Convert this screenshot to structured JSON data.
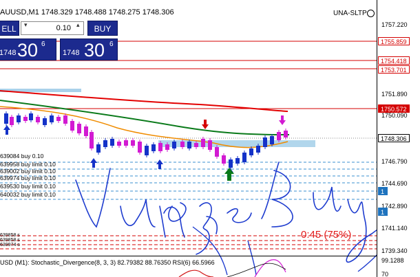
{
  "chart_header": {
    "title": "AUUSD,M1  1748.329  1748.488  1748.275  1748.306"
  },
  "ea_label": {
    "text": "UNA-SLTP"
  },
  "trade_panel": {
    "sell_label": "ELL",
    "buy_label": "BUY",
    "lot_value": "0.10",
    "sell_price_small": "1748",
    "sell_price_big": "30",
    "sell_price_pip": "6",
    "buy_price_small": "1748",
    "buy_price_big": "30",
    "buy_price_pip": "6"
  },
  "price_axis": {
    "ticks": [
      "1757.220",
      "1751.890",
      "1750.090",
      "1746.790",
      "1744.690",
      "1742.890",
      "1741.140",
      "1739.340",
      "99.1288",
      "70"
    ],
    "tags": [
      {
        "text": "1755.859",
        "bg": "#ffffff",
        "fg": "#d40000",
        "border": "#d40000"
      },
      {
        "text": "1754.418",
        "bg": "#ffffff",
        "fg": "#d40000",
        "border": "#d40000"
      },
      {
        "text": "1753.701",
        "bg": "#ffffff",
        "fg": "#d40000",
        "border": "#d40000"
      },
      {
        "text": "1750.572",
        "bg": "#d40000",
        "fg": "#ffffff",
        "border": "#d40000"
      },
      {
        "text": "1748.306",
        "bg": "#ffffff",
        "fg": "#000000",
        "border": "#000000"
      },
      {
        "text": "1",
        "bg": "#1e73be",
        "fg": "#ffffff",
        "border": "#1e73be"
      },
      {
        "text": "1",
        "bg": "#1e73be",
        "fg": "#ffffff",
        "border": "#1e73be"
      }
    ]
  },
  "orders": [
    "639084 buy 0.10",
    "639958 buy limit 0.10",
    "639002 buy limit 0.10",
    "639974 buy limit 0.10",
    "639530 buy limit 0.10",
    "640032 buy limit 0.10"
  ],
  "stacked_orders": [
    "639858 s",
    "639858 s",
    "639974 s"
  ],
  "bar_timer": {
    "text": "0:45 (75%)"
  },
  "handwriting": {
    "text": "Vung Buy"
  },
  "indicator": {
    "label": "USD (M1): Stochastic_Divergence(8, 3, 3) 82.79382 88.76350  RSI(6) 66.5966"
  },
  "colors": {
    "buy_panel": "#1c2a8e",
    "level_line": "#d40000",
    "ma_red": "#e30000",
    "ma_green": "#0a7a1a",
    "ma_orange": "#f08c00",
    "candle_bull": "#1432c8",
    "candle_bear": "#d21ad2",
    "blue_zone": "#a9d1ea",
    "ink": "#1e3ccf"
  }
}
